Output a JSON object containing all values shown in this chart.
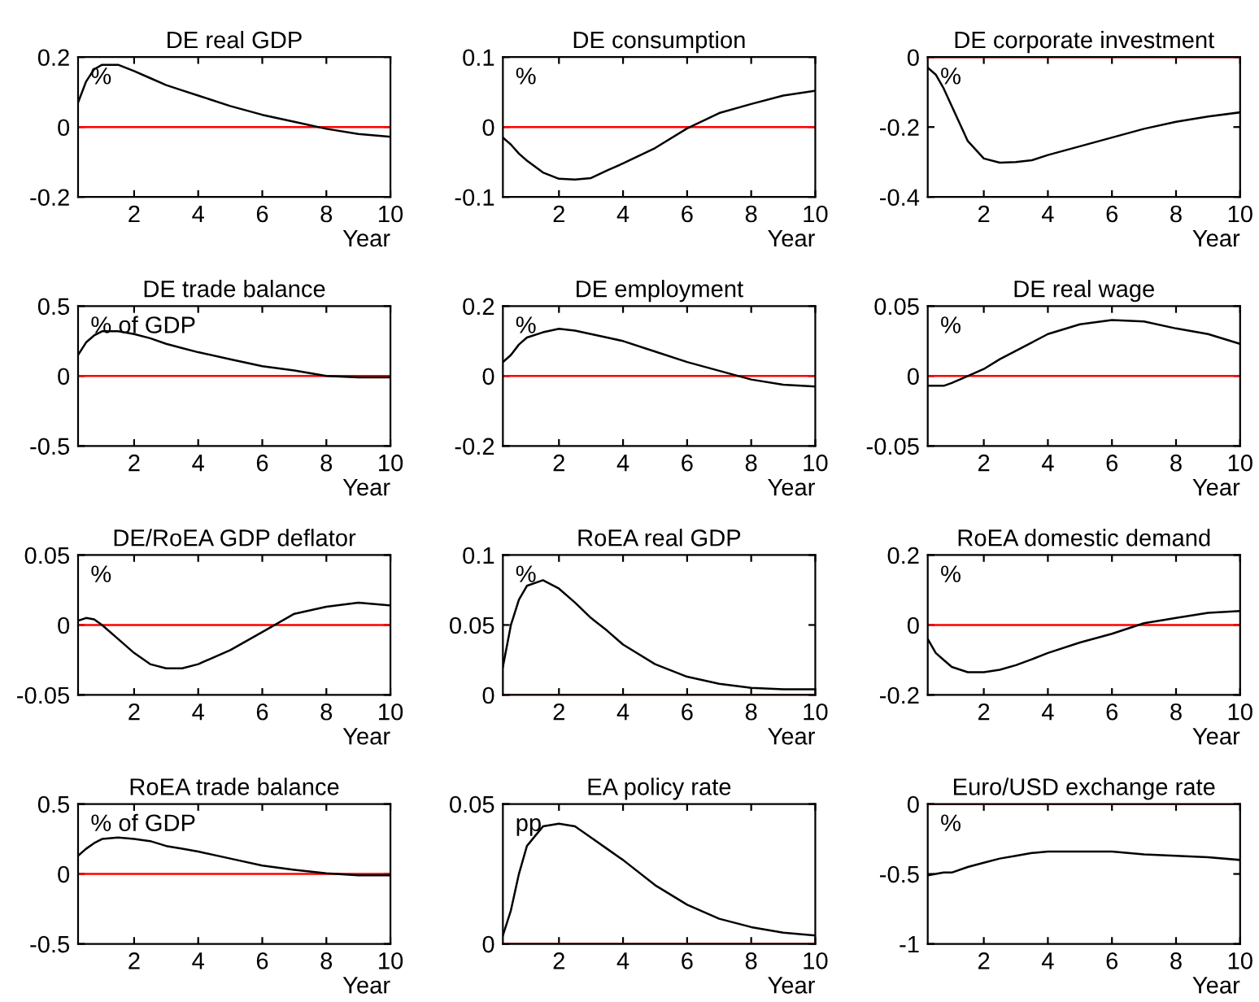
{
  "chart_data": [
    {
      "type": "line",
      "title": "DE real GDP",
      "xlabel": "Year",
      "annotations": [
        "%"
      ],
      "xlim": [
        0.25,
        10
      ],
      "xticks": [
        2,
        4,
        6,
        8,
        10
      ],
      "ylim": [
        -0.2,
        0.2
      ],
      "yticks": [
        -0.2,
        0,
        0.2
      ],
      "ref_lines": [
        {
          "axis": "y",
          "value": 0,
          "color": "#ff0000"
        }
      ],
      "grid": false,
      "legend": false,
      "series": [
        {
          "color": "#000000",
          "x": [
            0.25,
            0.5,
            0.75,
            1,
            1.5,
            2,
            2.5,
            3,
            3.5,
            4,
            5,
            6,
            7,
            8,
            9,
            10
          ],
          "values": [
            0.07,
            0.13,
            0.165,
            0.178,
            0.178,
            0.16,
            0.14,
            0.12,
            0.105,
            0.09,
            0.06,
            0.035,
            0.015,
            -0.005,
            -0.02,
            -0.028
          ]
        }
      ]
    },
    {
      "type": "line",
      "title": "DE consumption",
      "xlabel": "Year",
      "annotations": [
        "%"
      ],
      "xlim": [
        0.25,
        10
      ],
      "xticks": [
        2,
        4,
        6,
        8,
        10
      ],
      "ylim": [
        -0.1,
        0.1
      ],
      "yticks": [
        -0.1,
        0,
        0.1
      ],
      "ref_lines": [
        {
          "axis": "y",
          "value": 0,
          "color": "#ff0000"
        }
      ],
      "grid": false,
      "legend": false,
      "series": [
        {
          "color": "#000000",
          "x": [
            0.25,
            0.5,
            0.75,
            1,
            1.5,
            2,
            2.5,
            3,
            3.5,
            4,
            5,
            6,
            7,
            8,
            9,
            10
          ],
          "values": [
            -0.015,
            -0.025,
            -0.038,
            -0.048,
            -0.065,
            -0.074,
            -0.075,
            -0.073,
            -0.062,
            -0.052,
            -0.03,
            -0.002,
            0.02,
            0.033,
            0.045,
            0.052
          ]
        }
      ]
    },
    {
      "type": "line",
      "title": "DE corporate investment",
      "xlabel": "Year",
      "annotations": [
        "%"
      ],
      "xlim": [
        0.25,
        10
      ],
      "xticks": [
        2,
        4,
        6,
        8,
        10
      ],
      "ylim": [
        -0.4,
        0
      ],
      "yticks": [
        -0.4,
        -0.2,
        0
      ],
      "ref_lines": [
        {
          "axis": "y",
          "value": 0,
          "color": "#ff0000"
        }
      ],
      "grid": false,
      "legend": false,
      "series": [
        {
          "color": "#000000",
          "x": [
            0.25,
            0.5,
            0.75,
            1,
            1.5,
            2,
            2.5,
            3,
            3.5,
            4,
            5,
            6,
            7,
            8,
            9,
            10
          ],
          "values": [
            -0.03,
            -0.05,
            -0.09,
            -0.14,
            -0.24,
            -0.29,
            -0.302,
            -0.3,
            -0.295,
            -0.28,
            -0.255,
            -0.23,
            -0.205,
            -0.185,
            -0.17,
            -0.158
          ]
        }
      ]
    },
    {
      "type": "line",
      "title": "DE trade balance",
      "xlabel": "Year",
      "annotations": [
        "% of GDP"
      ],
      "xlim": [
        0.25,
        10
      ],
      "xticks": [
        2,
        4,
        6,
        8,
        10
      ],
      "ylim": [
        -0.5,
        0.5
      ],
      "yticks": [
        -0.5,
        0,
        0.5
      ],
      "ref_lines": [
        {
          "axis": "y",
          "value": 0,
          "color": "#ff0000"
        }
      ],
      "grid": false,
      "legend": false,
      "series": [
        {
          "color": "#000000",
          "x": [
            0.25,
            0.5,
            0.75,
            1,
            1.5,
            2,
            2.5,
            3,
            3.5,
            4,
            5,
            6,
            7,
            8,
            9,
            10
          ],
          "values": [
            0.15,
            0.24,
            0.29,
            0.32,
            0.32,
            0.3,
            0.27,
            0.23,
            0.2,
            0.17,
            0.12,
            0.07,
            0.04,
            0.0,
            -0.01,
            -0.01
          ]
        }
      ]
    },
    {
      "type": "line",
      "title": "DE employment",
      "xlabel": "Year",
      "annotations": [
        "%"
      ],
      "xlim": [
        0.25,
        10
      ],
      "xticks": [
        2,
        4,
        6,
        8,
        10
      ],
      "ylim": [
        -0.2,
        0.2
      ],
      "yticks": [
        -0.2,
        0,
        0.2
      ],
      "ref_lines": [
        {
          "axis": "y",
          "value": 0,
          "color": "#ff0000"
        }
      ],
      "grid": false,
      "legend": false,
      "series": [
        {
          "color": "#000000",
          "x": [
            0.25,
            0.5,
            0.75,
            1,
            1.5,
            2,
            2.5,
            3,
            3.5,
            4,
            5,
            6,
            7,
            8,
            9,
            10
          ],
          "values": [
            0.04,
            0.06,
            0.09,
            0.11,
            0.125,
            0.135,
            0.13,
            0.12,
            0.11,
            0.1,
            0.07,
            0.04,
            0.015,
            -0.01,
            -0.025,
            -0.03
          ]
        }
      ]
    },
    {
      "type": "line",
      "title": "DE real wage",
      "xlabel": "Year",
      "annotations": [
        "%"
      ],
      "xlim": [
        0.25,
        10
      ],
      "xticks": [
        2,
        4,
        6,
        8,
        10
      ],
      "ylim": [
        -0.05,
        0.05
      ],
      "yticks": [
        -0.05,
        0,
        0.05
      ],
      "ref_lines": [
        {
          "axis": "y",
          "value": 0,
          "color": "#ff0000"
        }
      ],
      "grid": false,
      "legend": false,
      "series": [
        {
          "color": "#000000",
          "x": [
            0.25,
            0.5,
            0.75,
            1,
            1.5,
            2,
            2.5,
            3,
            3.5,
            4,
            5,
            6,
            7,
            8,
            9,
            10
          ],
          "values": [
            -0.007,
            -0.007,
            -0.007,
            -0.005,
            0,
            0.005,
            0.012,
            0.018,
            0.024,
            0.03,
            0.037,
            0.04,
            0.039,
            0.034,
            0.03,
            0.023
          ]
        }
      ]
    },
    {
      "type": "line",
      "title": "DE/RoEA GDP deflator",
      "xlabel": "Year",
      "annotations": [
        "%"
      ],
      "xlim": [
        0.25,
        10
      ],
      "xticks": [
        2,
        4,
        6,
        8,
        10
      ],
      "ylim": [
        -0.05,
        0.05
      ],
      "yticks": [
        -0.05,
        0,
        0.05
      ],
      "ref_lines": [
        {
          "axis": "y",
          "value": 0,
          "color": "#ff0000"
        }
      ],
      "grid": false,
      "legend": false,
      "series": [
        {
          "color": "#000000",
          "x": [
            0.25,
            0.5,
            0.75,
            1,
            1.5,
            2,
            2.5,
            3,
            3.5,
            4,
            5,
            6,
            7,
            8,
            9,
            10
          ],
          "values": [
            0.003,
            0.005,
            0.004,
            0.0,
            -0.01,
            -0.02,
            -0.028,
            -0.031,
            -0.031,
            -0.028,
            -0.018,
            -0.005,
            0.008,
            0.013,
            0.016,
            0.014
          ]
        }
      ]
    },
    {
      "type": "line",
      "title": "RoEA real GDP",
      "xlabel": "Year",
      "annotations": [
        "%"
      ],
      "xlim": [
        0.25,
        10
      ],
      "xticks": [
        2,
        4,
        6,
        8,
        10
      ],
      "ylim": [
        0,
        0.1
      ],
      "yticks": [
        0,
        0.05,
        0.1
      ],
      "ref_lines": [
        {
          "axis": "y",
          "value": 0,
          "color": "#ff0000"
        }
      ],
      "grid": false,
      "legend": false,
      "series": [
        {
          "color": "#000000",
          "x": [
            0.25,
            0.5,
            0.75,
            1,
            1.5,
            2,
            2.5,
            3,
            3.5,
            4,
            5,
            6,
            7,
            8,
            9,
            10
          ],
          "values": [
            0.02,
            0.05,
            0.068,
            0.078,
            0.082,
            0.076,
            0.066,
            0.055,
            0.046,
            0.036,
            0.022,
            0.013,
            0.008,
            0.005,
            0.004,
            0.004
          ]
        }
      ]
    },
    {
      "type": "line",
      "title": "RoEA domestic demand",
      "xlabel": "Year",
      "annotations": [
        "%"
      ],
      "xlim": [
        0.25,
        10
      ],
      "xticks": [
        2,
        4,
        6,
        8,
        10
      ],
      "ylim": [
        -0.2,
        0.2
      ],
      "yticks": [
        -0.2,
        0,
        0.2
      ],
      "ref_lines": [
        {
          "axis": "y",
          "value": 0,
          "color": "#ff0000"
        }
      ],
      "grid": false,
      "legend": false,
      "series": [
        {
          "color": "#000000",
          "x": [
            0.25,
            0.5,
            0.75,
            1,
            1.5,
            2,
            2.5,
            3,
            3.5,
            4,
            5,
            6,
            7,
            8,
            9,
            10
          ],
          "values": [
            -0.04,
            -0.08,
            -0.1,
            -0.12,
            -0.135,
            -0.135,
            -0.128,
            -0.115,
            -0.098,
            -0.08,
            -0.05,
            -0.025,
            0.005,
            0.02,
            0.035,
            0.04
          ]
        }
      ]
    },
    {
      "type": "line",
      "title": "RoEA trade balance",
      "xlabel": "Year",
      "annotations": [
        "% of GDP"
      ],
      "xlim": [
        0.25,
        10
      ],
      "xticks": [
        2,
        4,
        6,
        8,
        10
      ],
      "ylim": [
        -0.5,
        0.5
      ],
      "yticks": [
        -0.5,
        0,
        0.5
      ],
      "ref_lines": [
        {
          "axis": "y",
          "value": 0,
          "color": "#ff0000"
        }
      ],
      "grid": false,
      "legend": false,
      "series": [
        {
          "color": "#000000",
          "x": [
            0.25,
            0.5,
            0.75,
            1,
            1.5,
            2,
            2.5,
            3,
            3.5,
            4,
            5,
            6,
            7,
            8,
            9,
            10
          ],
          "values": [
            0.13,
            0.18,
            0.22,
            0.25,
            0.26,
            0.25,
            0.235,
            0.2,
            0.18,
            0.16,
            0.11,
            0.06,
            0.03,
            0.005,
            -0.01,
            -0.01
          ]
        }
      ]
    },
    {
      "type": "line",
      "title": "EA policy rate",
      "xlabel": "Year",
      "annotations": [
        "pp"
      ],
      "xlim": [
        0.25,
        10
      ],
      "xticks": [
        2,
        4,
        6,
        8,
        10
      ],
      "ylim": [
        0,
        0.05
      ],
      "yticks": [
        0,
        0.05
      ],
      "ref_lines": [
        {
          "axis": "y",
          "value": 0,
          "color": "#ff0000"
        }
      ],
      "grid": false,
      "legend": false,
      "series": [
        {
          "color": "#000000",
          "x": [
            0.25,
            0.5,
            0.75,
            1,
            1.5,
            2,
            2.5,
            3,
            3.5,
            4,
            5,
            6,
            7,
            8,
            9,
            10
          ],
          "values": [
            0.003,
            0.012,
            0.025,
            0.035,
            0.042,
            0.043,
            0.042,
            0.038,
            0.034,
            0.03,
            0.021,
            0.014,
            0.009,
            0.006,
            0.004,
            0.003
          ]
        }
      ]
    },
    {
      "type": "line",
      "title": "Euro/USD exchange rate",
      "xlabel": "Year",
      "annotations": [
        "%"
      ],
      "xlim": [
        0.25,
        10
      ],
      "xticks": [
        2,
        4,
        6,
        8,
        10
      ],
      "ylim": [
        -1,
        0
      ],
      "yticks": [
        -1,
        -0.5,
        0
      ],
      "ref_lines": [
        {
          "axis": "y",
          "value": 0,
          "color": "#ff0000"
        }
      ],
      "grid": false,
      "legend": false,
      "series": [
        {
          "color": "#000000",
          "x": [
            0.25,
            0.5,
            0.75,
            1,
            1.5,
            2,
            2.5,
            3,
            3.5,
            4,
            5,
            6,
            7,
            8,
            9,
            10
          ],
          "values": [
            -0.51,
            -0.5,
            -0.49,
            -0.49,
            -0.45,
            -0.42,
            -0.39,
            -0.37,
            -0.35,
            -0.34,
            -0.34,
            -0.34,
            -0.36,
            -0.37,
            -0.38,
            -0.4
          ]
        }
      ]
    }
  ]
}
